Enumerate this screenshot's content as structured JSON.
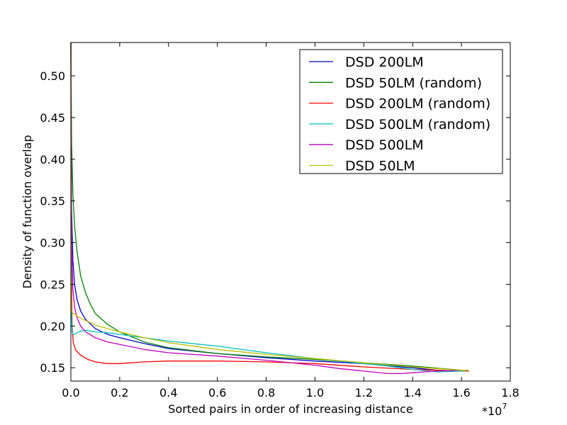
{
  "chart_data": {
    "type": "line",
    "title": "",
    "xlabel": "Sorted pairs in order of increasing distance",
    "ylabel": "Density of function overlap",
    "x_multiplier_label": "*10",
    "x_multiplier_exponent": "7",
    "xlim": [
      0,
      1.8
    ],
    "ylim": [
      0.134,
      0.54
    ],
    "x_ticks": [
      0.0,
      0.2,
      0.4,
      0.6,
      0.8,
      1.0,
      1.2,
      1.4,
      1.6,
      1.8
    ],
    "x_tick_labels": [
      "0.0",
      "0.2",
      "0.4",
      "0.6",
      "0.8",
      "1.0",
      "1.2",
      "1.4",
      "1.6",
      "1.8"
    ],
    "y_ticks": [
      0.15,
      0.2,
      0.25,
      0.3,
      0.35,
      0.4,
      0.45,
      0.5
    ],
    "y_tick_labels": [
      "0.15",
      "0.20",
      "0.25",
      "0.30",
      "0.35",
      "0.40",
      "0.45",
      "0.50"
    ],
    "grid": false,
    "legend_position": "top-right",
    "series": [
      {
        "name": "DSD 200LM",
        "color": "#0000cc",
        "x": [
          0,
          0.003,
          0.008,
          0.015,
          0.025,
          0.04,
          0.06,
          0.1,
          0.15,
          0.2,
          0.3,
          0.4,
          0.6,
          0.8,
          1.0,
          1.2,
          1.4,
          1.5,
          1.6,
          1.63
        ],
        "y": [
          0.54,
          0.34,
          0.28,
          0.25,
          0.232,
          0.218,
          0.208,
          0.197,
          0.19,
          0.186,
          0.179,
          0.173,
          0.167,
          0.162,
          0.158,
          0.155,
          0.15,
          0.147,
          0.146,
          0.146
        ]
      },
      {
        "name": "DSD 50LM (random)",
        "color": "#008000",
        "x": [
          0,
          0.003,
          0.008,
          0.015,
          0.025,
          0.04,
          0.06,
          0.08,
          0.1,
          0.15,
          0.2,
          0.3,
          0.4,
          0.6,
          0.8,
          1.0,
          1.2,
          1.4,
          1.6,
          1.63
        ],
        "y": [
          0.54,
          0.42,
          0.36,
          0.32,
          0.29,
          0.26,
          0.24,
          0.226,
          0.215,
          0.202,
          0.193,
          0.181,
          0.174,
          0.167,
          0.163,
          0.16,
          0.156,
          0.152,
          0.147,
          0.147
        ]
      },
      {
        "name": "DSD 200LM (random)",
        "color": "#ff0000",
        "x": [
          0,
          0.002,
          0.005,
          0.01,
          0.02,
          0.04,
          0.07,
          0.1,
          0.15,
          0.2,
          0.3,
          0.4,
          0.5,
          0.6,
          0.8,
          1.0,
          1.2,
          1.4,
          1.6,
          1.63
        ],
        "y": [
          0.54,
          0.3,
          0.2,
          0.18,
          0.171,
          0.165,
          0.16,
          0.157,
          0.155,
          0.155,
          0.157,
          0.158,
          0.158,
          0.158,
          0.157,
          0.155,
          0.151,
          0.148,
          0.146,
          0.146
        ]
      },
      {
        "name": "DSD 500LM (random)",
        "color": "#00bfbf",
        "x": [
          0,
          0.002,
          0.005,
          0.01,
          0.015,
          0.025,
          0.04,
          0.06,
          0.08,
          0.1,
          0.15,
          0.2,
          0.3,
          0.4,
          0.6,
          0.8,
          1.0,
          1.2,
          1.3,
          1.4,
          1.5,
          1.6,
          1.63
        ],
        "y": [
          0.54,
          0.22,
          0.193,
          0.19,
          0.19,
          0.192,
          0.194,
          0.195,
          0.194,
          0.193,
          0.192,
          0.19,
          0.186,
          0.182,
          0.176,
          0.168,
          0.161,
          0.155,
          0.152,
          0.148,
          0.145,
          0.146,
          0.147
        ]
      },
      {
        "name": "DSD 500LM",
        "color": "#bf00bf",
        "x": [
          0,
          0.003,
          0.008,
          0.015,
          0.025,
          0.04,
          0.06,
          0.1,
          0.15,
          0.2,
          0.3,
          0.4,
          0.6,
          0.8,
          1.0,
          1.1,
          1.2,
          1.3,
          1.35,
          1.4,
          1.5,
          1.6,
          1.63
        ],
        "y": [
          0.54,
          0.3,
          0.245,
          0.223,
          0.21,
          0.2,
          0.193,
          0.186,
          0.181,
          0.178,
          0.172,
          0.168,
          0.164,
          0.159,
          0.153,
          0.149,
          0.146,
          0.143,
          0.143,
          0.144,
          0.146,
          0.147,
          0.147
        ]
      },
      {
        "name": "DSD 50LM",
        "color": "#bfbf00",
        "x": [
          0,
          0.001,
          0.003,
          0.008,
          0.015,
          0.03,
          0.05,
          0.08,
          0.1,
          0.15,
          0.2,
          0.3,
          0.4,
          0.6,
          0.8,
          1.0,
          1.2,
          1.4,
          1.6,
          1.63
        ],
        "y": [
          0.54,
          0.25,
          0.218,
          0.215,
          0.214,
          0.211,
          0.208,
          0.204,
          0.201,
          0.197,
          0.193,
          0.186,
          0.18,
          0.172,
          0.166,
          0.161,
          0.156,
          0.151,
          0.147,
          0.147
        ]
      }
    ]
  }
}
